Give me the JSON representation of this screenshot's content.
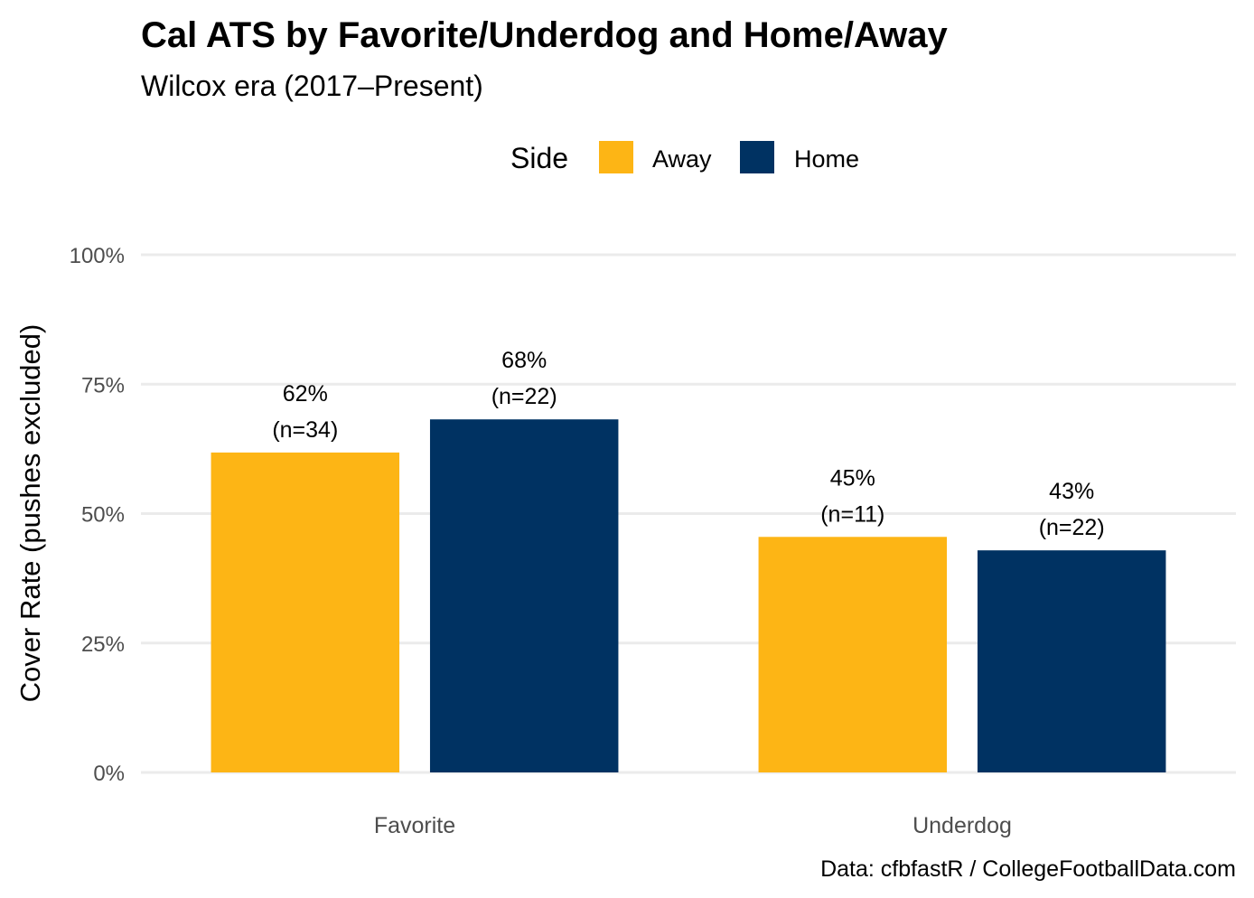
{
  "chart_data": {
    "type": "bar",
    "title": "Cal ATS by Favorite/Underdog and Home/Away",
    "subtitle": "Wilcox era (2017–Present)",
    "xlabel": "",
    "ylabel": "Cover Rate (pushes excluded)",
    "caption": "Data: cfbfastR / CollegeFootballData.com",
    "categories": [
      "Favorite",
      "Underdog"
    ],
    "ylim": [
      0,
      1
    ],
    "yticks": [
      0,
      0.25,
      0.5,
      0.75,
      1
    ],
    "ytick_labels": [
      "0%",
      "25%",
      "50%",
      "75%",
      "100%"
    ],
    "grid": true,
    "legend": {
      "title": "Side",
      "position": "top",
      "entries": [
        "Away",
        "Home"
      ]
    },
    "series": [
      {
        "name": "Away",
        "color": "#FDB515",
        "values": [
          0.618,
          0.455
        ],
        "labels": [
          "62%",
          "45%"
        ],
        "n_labels": [
          "(n=34)",
          "(n=11)"
        ]
      },
      {
        "name": "Home",
        "color": "#003262",
        "values": [
          0.682,
          0.429
        ],
        "labels": [
          "68%",
          "43%"
        ],
        "n_labels": [
          "(n=22)",
          "(n=22)"
        ]
      }
    ]
  }
}
